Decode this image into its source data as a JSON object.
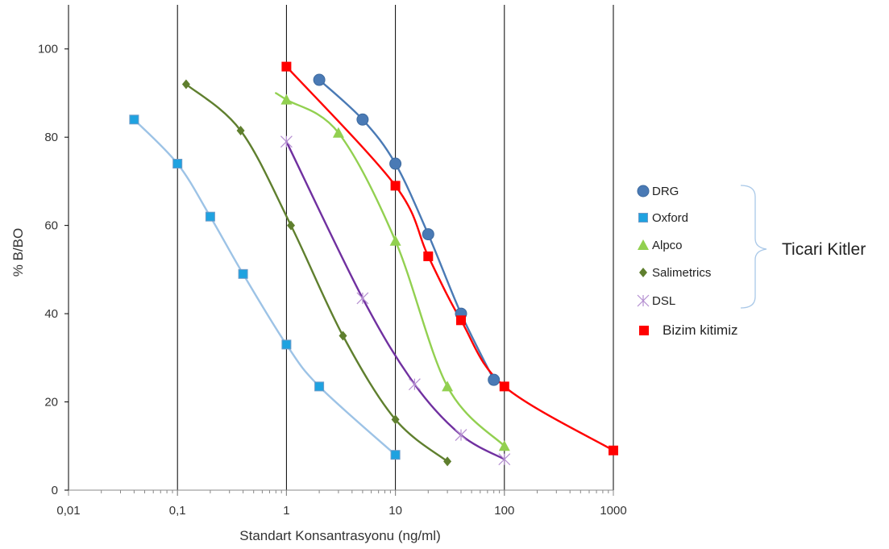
{
  "chart_data": {
    "type": "line",
    "xlabel": "Standart Konsantrasyonu (ng/ml)",
    "ylabel": "% B/BO",
    "x_scale": "log",
    "xlim": [
      0.01,
      1000
    ],
    "ylim": [
      0,
      110
    ],
    "x_ticks": [
      0.01,
      0.1,
      1,
      10,
      100,
      1000
    ],
    "x_tick_labels": [
      "0,01",
      "0,1",
      "1",
      "10",
      "100",
      "1000"
    ],
    "y_ticks": [
      0,
      20,
      40,
      60,
      80,
      100
    ],
    "y_tick_labels": [
      "0",
      "20",
      "40",
      "60",
      "80",
      "100"
    ],
    "vertical_gridlines": true,
    "horizontal_gridlines": false,
    "legend_position": "right",
    "group_label": "Ticari Kitler",
    "series": [
      {
        "name": "DRG",
        "color": "#4a7ab5",
        "marker": "circle",
        "x": [
          2,
          5,
          10,
          20,
          40,
          80
        ],
        "y": [
          93,
          84,
          74,
          58,
          40,
          25
        ]
      },
      {
        "name": "Oxford",
        "color": "#9dc3e6",
        "marker_fill": "#1fa2e0",
        "marker": "square",
        "x": [
          0.04,
          0.1,
          0.2,
          0.4,
          1,
          2,
          10
        ],
        "y": [
          84,
          74,
          62,
          49,
          33,
          23.5,
          8
        ]
      },
      {
        "name": "Alpco",
        "color": "#92d050",
        "marker": "triangle",
        "x": [
          1,
          3,
          10,
          30,
          100
        ],
        "y": [
          88.5,
          81,
          56.5,
          23.5,
          10
        ],
        "curve_start": [
          0.8,
          90
        ]
      },
      {
        "name": "Salimetrics",
        "color": "#5f7f2e",
        "marker": "diamond",
        "x": [
          0.12,
          0.38,
          1.1,
          3.3,
          10,
          30
        ],
        "y": [
          92,
          81.5,
          60,
          35,
          16,
          6.5
        ]
      },
      {
        "name": "DSL",
        "color": "#7030a0",
        "marker": "star",
        "x": [
          1,
          5,
          15,
          40,
          100
        ],
        "y": [
          79,
          43.5,
          24,
          12.5,
          7
        ]
      },
      {
        "name": "Bizim kitimiz",
        "color": "#ff0000",
        "marker": "square",
        "x": [
          1,
          10,
          20,
          40,
          100,
          1000
        ],
        "y": [
          96,
          69,
          53,
          38.5,
          23.5,
          9
        ]
      }
    ]
  }
}
